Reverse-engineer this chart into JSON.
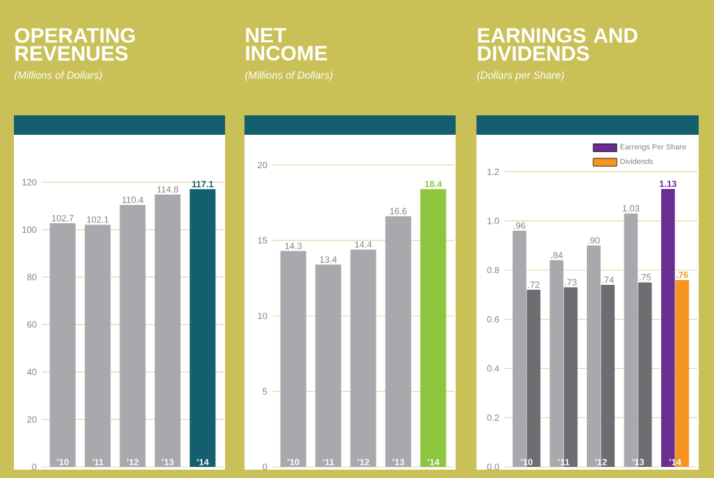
{
  "chart_data": [
    {
      "type": "bar",
      "title": "OPERATING REVENUES",
      "subtitle": "(Millions of Dollars)",
      "categories": [
        "’10",
        "’11",
        "’12",
        "’13",
        "’14"
      ],
      "values": [
        102.7,
        102.1,
        110.4,
        114.8,
        117.1
      ],
      "colors": [
        "#a7a9ac",
        "#a7a9ac",
        "#a7a9ac",
        "#a7a9ac",
        "#135f70"
      ],
      "ylim": [
        0,
        140
      ],
      "yticks": [
        0,
        20,
        40,
        60,
        80,
        100,
        120
      ],
      "grid": "y",
      "data_labels": true
    },
    {
      "type": "bar",
      "title": "NET INCOME",
      "subtitle": "(Millions of Dollars)",
      "categories": [
        "’10",
        "’11",
        "’12",
        "’13",
        "’14"
      ],
      "values": [
        14.3,
        13.4,
        14.4,
        16.6,
        18.4
      ],
      "colors": [
        "#a7a9ac",
        "#a7a9ac",
        "#a7a9ac",
        "#a7a9ac",
        "#8cc63f"
      ],
      "ylim": [
        0,
        22
      ],
      "yticks": [
        0,
        5,
        10,
        15,
        20
      ],
      "grid": "y",
      "data_labels": true
    },
    {
      "type": "bar",
      "title": "EARNINGS AND DIVIDENDS",
      "subtitle": "(Dollars per Share)",
      "categories": [
        "’10",
        "’11",
        "’12",
        "’13",
        "’14"
      ],
      "series": [
        {
          "name": "Earnings Per Share",
          "color": "#6b2d8f",
          "colors": [
            "#a7a9ac",
            "#a7a9ac",
            "#a7a9ac",
            "#a7a9ac",
            "#6b2d8f"
          ],
          "values": [
            0.96,
            0.84,
            0.9,
            1.03,
            1.13
          ],
          "value_labels": [
            ".96",
            ".84",
            ".90",
            "1.03",
            "1.13"
          ]
        },
        {
          "name": "Dividends",
          "color": "#f7941d",
          "colors": [
            "#6d6e71",
            "#6d6e71",
            "#6d6e71",
            "#6d6e71",
            "#f7941d"
          ],
          "values": [
            0.72,
            0.73,
            0.74,
            0.75,
            0.76
          ],
          "value_labels": [
            ".72",
            ".73",
            ".74",
            ".75",
            ".76"
          ]
        }
      ],
      "ylim": [
        0,
        1.35
      ],
      "yticks": [
        {
          "value": 0,
          "label": "0.0"
        },
        0.2,
        0.4,
        0.6,
        {
          "value": 0.8,
          "label": "0.8"
        },
        {
          "value": 1.0,
          "label": "1.0"
        },
        1.2
      ],
      "grid": "y",
      "legend": "top right"
    }
  ]
}
